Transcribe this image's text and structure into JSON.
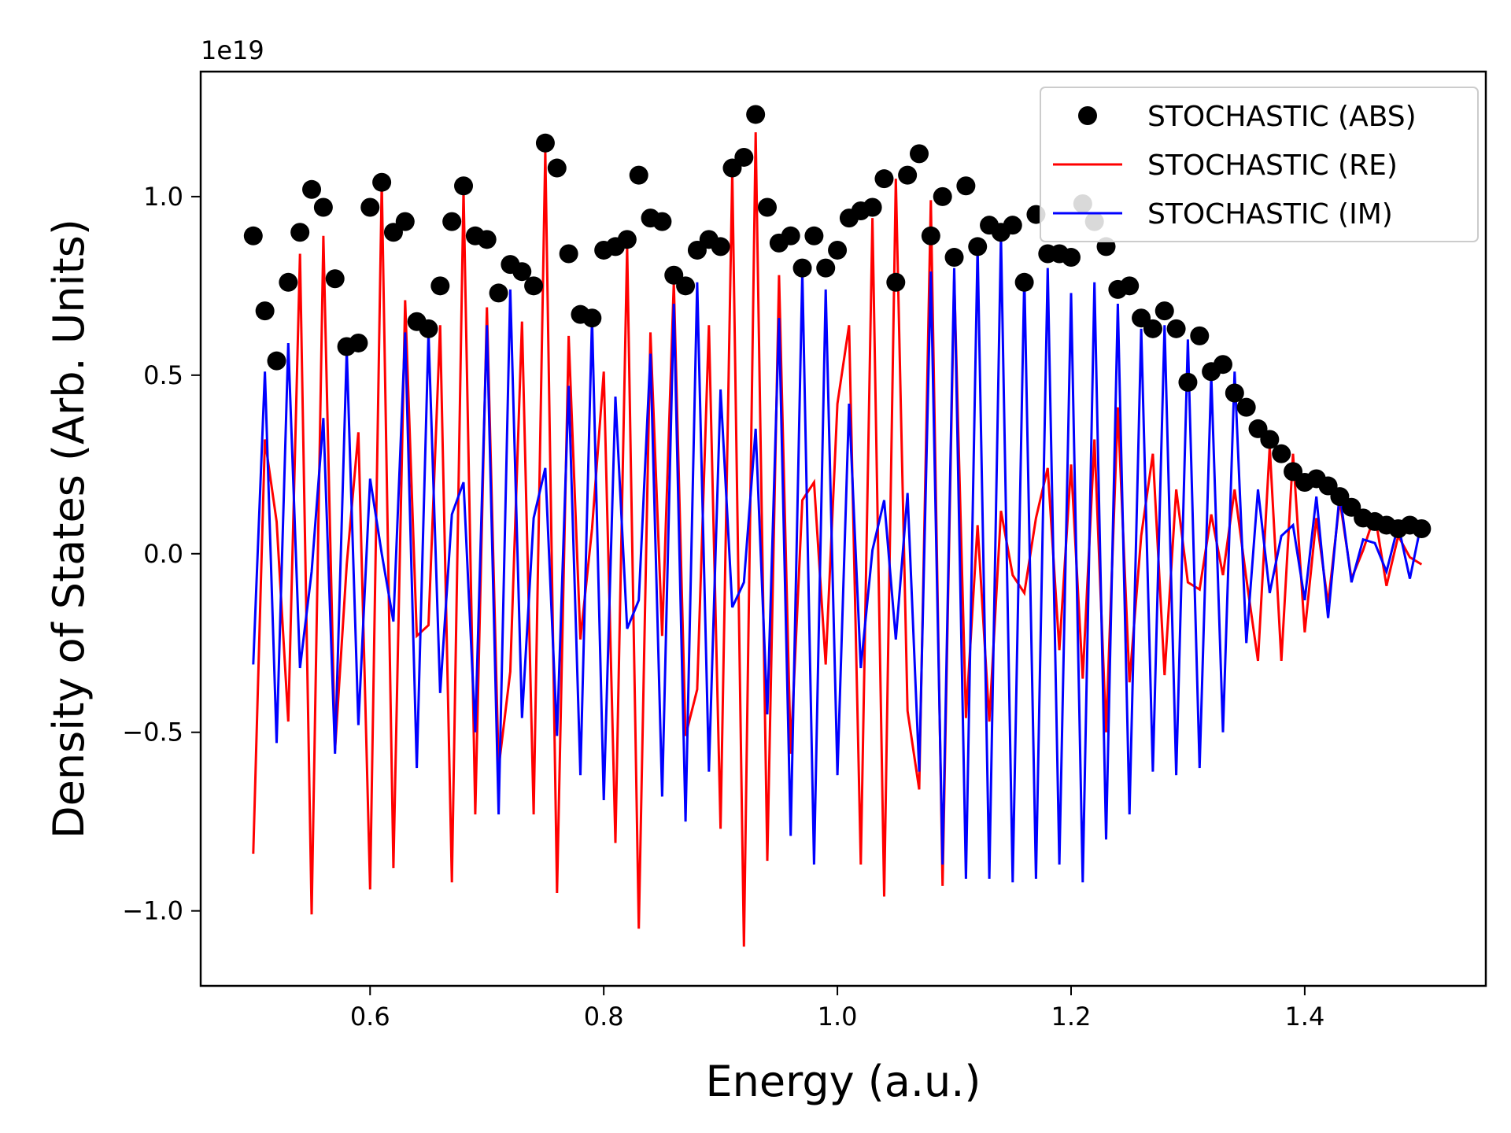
{
  "chart_data": {
    "type": "line",
    "xlabel": "Energy (a.u.)",
    "ylabel": "Density of States (Arb. Units)",
    "offset_label": "1e19",
    "xlim": [
      0.455,
      1.555
    ],
    "ylim": [
      -1.21,
      1.35
    ],
    "xticks": [
      0.6,
      0.8,
      1.0,
      1.2,
      1.4
    ],
    "xtick_labels": [
      "0.6",
      "0.8",
      "1.0",
      "1.2",
      "1.4"
    ],
    "yticks": [
      -1.0,
      -0.5,
      0.0,
      0.5,
      1.0
    ],
    "ytick_labels": [
      "−1.0",
      "−0.5",
      "0.0",
      "0.5",
      "1.0"
    ],
    "grid": false,
    "legend": {
      "placement": "top-right"
    },
    "x": [
      0.5,
      0.51,
      0.52,
      0.53,
      0.54,
      0.55,
      0.56,
      0.57,
      0.58,
      0.59,
      0.6,
      0.61,
      0.62,
      0.63,
      0.64,
      0.65,
      0.66,
      0.67,
      0.68,
      0.69,
      0.7,
      0.71,
      0.72,
      0.73,
      0.74,
      0.75,
      0.76,
      0.77,
      0.78,
      0.79,
      0.8,
      0.81,
      0.82,
      0.83,
      0.84,
      0.85,
      0.86,
      0.87,
      0.88,
      0.89,
      0.9,
      0.91,
      0.92,
      0.93,
      0.94,
      0.95,
      0.96,
      0.97,
      0.98,
      0.99,
      1.0,
      1.01,
      1.02,
      1.03,
      1.04,
      1.05,
      1.06,
      1.07,
      1.08,
      1.09,
      1.1,
      1.11,
      1.12,
      1.13,
      1.14,
      1.15,
      1.16,
      1.17,
      1.18,
      1.19,
      1.2,
      1.21,
      1.22,
      1.23,
      1.24,
      1.25,
      1.26,
      1.27,
      1.28,
      1.29,
      1.3,
      1.31,
      1.32,
      1.33,
      1.34,
      1.35,
      1.36,
      1.37,
      1.38,
      1.39,
      1.4,
      1.41,
      1.42,
      1.43,
      1.44,
      1.45,
      1.46,
      1.47,
      1.48,
      1.49,
      1.5
    ],
    "series": [
      {
        "name": "STOCHASTIC (ABS)",
        "style": "marker",
        "color": "#000000",
        "values": [
          0.89,
          0.68,
          0.54,
          0.76,
          0.9,
          1.02,
          0.97,
          0.77,
          0.58,
          0.59,
          0.97,
          1.04,
          0.9,
          0.93,
          0.65,
          0.63,
          0.75,
          0.93,
          1.03,
          0.89,
          0.88,
          0.73,
          0.81,
          0.79,
          0.75,
          1.15,
          1.08,
          0.84,
          0.67,
          0.66,
          0.85,
          0.86,
          0.88,
          1.06,
          0.94,
          0.93,
          0.78,
          0.75,
          0.85,
          0.88,
          0.86,
          1.08,
          1.11,
          1.23,
          0.97,
          0.87,
          0.89,
          0.8,
          0.89,
          0.8,
          0.85,
          0.94,
          0.96,
          0.97,
          1.05,
          0.76,
          1.06,
          1.12,
          0.89,
          1.0,
          0.83,
          1.03,
          0.86,
          0.92,
          0.9,
          0.92,
          0.76,
          0.95,
          0.84,
          0.84,
          0.83,
          0.98,
          0.93,
          0.86,
          0.74,
          0.75,
          0.66,
          0.63,
          0.68,
          0.63,
          0.48,
          0.61,
          0.51,
          0.53,
          0.45,
          0.41,
          0.35,
          0.32,
          0.28,
          0.23,
          0.2,
          0.21,
          0.19,
          0.16,
          0.13,
          0.1,
          0.09,
          0.08,
          0.07,
          0.08,
          0.07
        ]
      },
      {
        "name": "STOCHASTIC (RE)",
        "style": "line",
        "color": "#ff0000",
        "values": [
          -0.84,
          0.32,
          0.09,
          -0.47,
          0.84,
          -1.01,
          0.89,
          -0.55,
          -0.03,
          0.34,
          -0.94,
          1.04,
          -0.88,
          0.71,
          -0.23,
          -0.2,
          0.64,
          -0.92,
          1.02,
          -0.73,
          0.69,
          -0.6,
          -0.33,
          0.65,
          -0.73,
          1.13,
          -0.95,
          0.61,
          -0.24,
          0.07,
          0.51,
          -0.81,
          0.86,
          -1.05,
          0.62,
          -0.23,
          0.76,
          -0.51,
          -0.38,
          0.64,
          -0.77,
          1.07,
          -1.1,
          1.18,
          -0.86,
          0.78,
          -0.56,
          0.15,
          0.2,
          -0.31,
          0.42,
          0.64,
          -0.87,
          0.94,
          -0.96,
          1.05,
          -0.44,
          -0.66,
          0.99,
          -0.93,
          0.77,
          -0.46,
          0.08,
          -0.47,
          0.12,
          -0.06,
          -0.11,
          0.1,
          0.24,
          -0.27,
          0.25,
          -0.35,
          0.32,
          -0.5,
          0.41,
          -0.36,
          0.05,
          0.28,
          -0.34,
          0.18,
          -0.08,
          -0.1,
          0.11,
          -0.06,
          0.18,
          -0.07,
          -0.3,
          0.3,
          -0.3,
          0.28,
          -0.22,
          0.1,
          -0.14,
          0.15,
          -0.07,
          0.01,
          0.11,
          -0.09,
          0.05,
          -0.01,
          -0.03
        ]
      },
      {
        "name": "STOCHASTIC (IM)",
        "style": "line",
        "color": "#0000ff",
        "values": [
          -0.31,
          0.51,
          -0.53,
          0.59,
          -0.32,
          -0.05,
          0.38,
          -0.56,
          0.57,
          -0.48,
          0.21,
          0.0,
          -0.19,
          0.62,
          -0.6,
          0.62,
          -0.39,
          0.11,
          0.2,
          -0.5,
          0.64,
          -0.73,
          0.74,
          -0.46,
          0.1,
          0.24,
          -0.51,
          0.47,
          -0.62,
          0.66,
          -0.69,
          0.44,
          -0.21,
          -0.13,
          0.56,
          -0.68,
          0.7,
          -0.75,
          0.76,
          -0.61,
          0.46,
          -0.15,
          -0.08,
          0.35,
          -0.45,
          0.66,
          -0.79,
          0.79,
          -0.87,
          0.74,
          -0.62,
          0.42,
          -0.32,
          0.01,
          0.15,
          -0.24,
          0.17,
          -0.61,
          0.79,
          -0.87,
          0.8,
          -0.91,
          0.86,
          -0.91,
          0.89,
          -0.92,
          0.78,
          -0.91,
          0.8,
          -0.87,
          0.73,
          -0.92,
          0.76,
          -0.8,
          0.7,
          -0.73,
          0.63,
          -0.61,
          0.64,
          -0.62,
          0.6,
          -0.6,
          0.5,
          -0.5,
          0.51,
          -0.25,
          0.18,
          -0.11,
          0.05,
          0.08,
          -0.13,
          0.16,
          -0.18,
          0.17,
          -0.08,
          0.04,
          0.03,
          -0.05,
          0.08,
          -0.07,
          0.09
        ]
      }
    ]
  }
}
